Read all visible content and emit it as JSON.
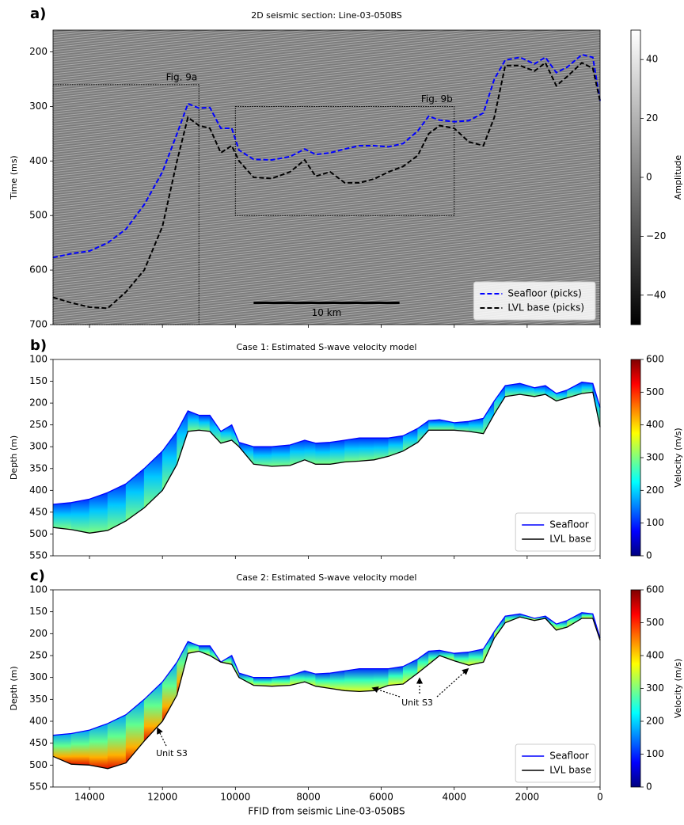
{
  "chart_data": [
    {
      "type": "seismic",
      "panel_label": "a)",
      "title": "2D seismic section: Line-03-050BS",
      "ylabel": "Time (ms)",
      "xlim": [
        15000,
        0
      ],
      "xticks": [
        14000,
        12000,
        10000,
        8000,
        6000,
        4000,
        2000,
        0
      ],
      "xtick_labels": false,
      "ylim": [
        700,
        160
      ],
      "yticks": [
        200,
        300,
        400,
        500,
        600,
        700
      ],
      "x": [
        15000,
        14500,
        14000,
        13500,
        13000,
        12500,
        12000,
        11600,
        11300,
        11000,
        10700,
        10400,
        10100,
        9900,
        9500,
        9000,
        8500,
        8100,
        7800,
        7400,
        7000,
        6600,
        6200,
        5800,
        5400,
        5000,
        4700,
        4400,
        4000,
        3600,
        3200,
        2900,
        2600,
        2200,
        1800,
        1500,
        1200,
        900,
        500,
        200,
        0
      ],
      "series": [
        {
          "name": "Seafloor (picks)",
          "color": "#0000ff",
          "linestyle": "dashed",
          "values": [
            577,
            570,
            565,
            550,
            525,
            480,
            420,
            350,
            295,
            303,
            302,
            340,
            340,
            380,
            397,
            398,
            392,
            378,
            388,
            385,
            378,
            372,
            372,
            374,
            368,
            345,
            318,
            325,
            328,
            326,
            312,
            250,
            215,
            210,
            222,
            210,
            238,
            228,
            205,
            210,
            290
          ]
        },
        {
          "name": "LVL base (picks)",
          "color": "#000000",
          "linestyle": "dashed",
          "values": [
            650,
            660,
            668,
            670,
            640,
            600,
            520,
            400,
            320,
            335,
            340,
            385,
            372,
            400,
            430,
            432,
            420,
            398,
            428,
            420,
            440,
            440,
            433,
            420,
            410,
            390,
            350,
            335,
            340,
            365,
            372,
            320,
            225,
            225,
            235,
            220,
            262,
            245,
            220,
            230,
            290
          ]
        }
      ],
      "regions": [
        {
          "label": "Fig. 9a",
          "x": [
            15000,
            11000
          ],
          "y": [
            260,
            700
          ]
        },
        {
          "label": "Fig. 9b",
          "x": [
            10000,
            4000
          ],
          "y": [
            300,
            500
          ]
        }
      ],
      "scalebar": {
        "label": "10 km",
        "x": [
          9500,
          5500
        ],
        "y": 660
      },
      "colorbar": {
        "label": "Amplitude",
        "colormap": "gray",
        "lim": [
          -50,
          50
        ],
        "ticks": [
          {
            "value": -40,
            "label": "−40"
          },
          {
            "value": -20,
            "label": "−20"
          },
          0,
          20,
          40
        ]
      },
      "legend": "lower right"
    },
    {
      "type": "velocity_model",
      "panel_label": "b)",
      "title": "Case 1: Estimated S-wave velocity model",
      "ylabel": "Depth (m)",
      "xlim": [
        15000,
        0
      ],
      "xticks": [
        14000,
        12000,
        10000,
        8000,
        6000,
        4000,
        2000,
        0
      ],
      "xtick_labels": false,
      "ylim": [
        550,
        100
      ],
      "yticks": [
        100,
        150,
        200,
        250,
        300,
        350,
        400,
        450,
        500,
        550
      ],
      "x": [
        15000,
        14500,
        14000,
        13500,
        13000,
        12500,
        12000,
        11600,
        11300,
        11000,
        10700,
        10400,
        10100,
        9900,
        9500,
        9000,
        8500,
        8100,
        7800,
        7400,
        7000,
        6600,
        6200,
        5800,
        5400,
        5000,
        4700,
        4400,
        4000,
        3600,
        3200,
        2900,
        2600,
        2200,
        1800,
        1500,
        1200,
        900,
        500,
        200,
        0
      ],
      "series": [
        {
          "name": "Seafloor",
          "color": "#0000ff",
          "linestyle": "solid",
          "values": [
            432,
            428,
            420,
            405,
            385,
            350,
            310,
            265,
            218,
            228,
            228,
            265,
            250,
            290,
            300,
            300,
            296,
            285,
            292,
            290,
            285,
            280,
            280,
            280,
            275,
            258,
            240,
            238,
            245,
            242,
            235,
            195,
            160,
            155,
            165,
            160,
            178,
            170,
            152,
            155,
            210
          ]
        },
        {
          "name": "LVL base",
          "color": "#000000",
          "linestyle": "solid",
          "values": [
            485,
            490,
            498,
            492,
            470,
            440,
            400,
            340,
            265,
            262,
            265,
            292,
            285,
            300,
            340,
            345,
            343,
            330,
            340,
            340,
            335,
            333,
            330,
            322,
            310,
            290,
            262,
            262,
            262,
            265,
            270,
            225,
            185,
            180,
            185,
            180,
            195,
            188,
            178,
            175,
            255
          ]
        }
      ],
      "colorbar": {
        "label": "Velocity (m/s)",
        "colormap": "jet",
        "lim": [
          0,
          600
        ],
        "ticks": [
          0,
          100,
          200,
          300,
          400,
          500,
          600
        ]
      },
      "legend": "lower right"
    },
    {
      "type": "velocity_model",
      "panel_label": "c)",
      "title": "Case 2: Estimated S-wave velocity model",
      "ylabel": "Depth (m)",
      "xlabel": "FFID from seismic Line-03-050BS",
      "xlim": [
        15000,
        0
      ],
      "xticks": [
        14000,
        12000,
        10000,
        8000,
        6000,
        4000,
        2000,
        0
      ],
      "xtick_labels": true,
      "ylim": [
        550,
        100
      ],
      "yticks": [
        100,
        150,
        200,
        250,
        300,
        350,
        400,
        450,
        500,
        550
      ],
      "x": [
        15000,
        14500,
        14000,
        13500,
        13000,
        12500,
        12000,
        11600,
        11300,
        11000,
        10700,
        10400,
        10100,
        9900,
        9500,
        9000,
        8500,
        8100,
        7800,
        7400,
        7000,
        6600,
        6200,
        5800,
        5400,
        5000,
        4700,
        4400,
        4000,
        3600,
        3200,
        2900,
        2600,
        2200,
        1800,
        1500,
        1200,
        900,
        500,
        200,
        0
      ],
      "series": [
        {
          "name": "Seafloor",
          "color": "#0000ff",
          "linestyle": "solid",
          "values": [
            432,
            428,
            420,
            405,
            385,
            350,
            310,
            265,
            218,
            228,
            228,
            265,
            250,
            290,
            300,
            300,
            296,
            285,
            292,
            290,
            285,
            280,
            280,
            280,
            275,
            258,
            240,
            238,
            245,
            242,
            235,
            195,
            160,
            155,
            165,
            160,
            178,
            170,
            152,
            155,
            210
          ]
        },
        {
          "name": "LVL base",
          "color": "#000000",
          "linestyle": "solid",
          "values": [
            480,
            498,
            500,
            508,
            495,
            445,
            400,
            340,
            245,
            240,
            250,
            265,
            270,
            300,
            318,
            320,
            318,
            310,
            320,
            325,
            330,
            332,
            330,
            318,
            315,
            290,
            270,
            250,
            262,
            272,
            265,
            210,
            175,
            162,
            170,
            165,
            192,
            185,
            165,
            165,
            215
          ]
        }
      ],
      "annotations": [
        "Unit S3",
        "Unit S3"
      ],
      "colorbar": {
        "label": "Velocity (m/s)",
        "colormap": "jet",
        "lim": [
          0,
          600
        ],
        "ticks": [
          0,
          100,
          200,
          300,
          400,
          500,
          600
        ]
      },
      "legend": "lower right"
    }
  ]
}
